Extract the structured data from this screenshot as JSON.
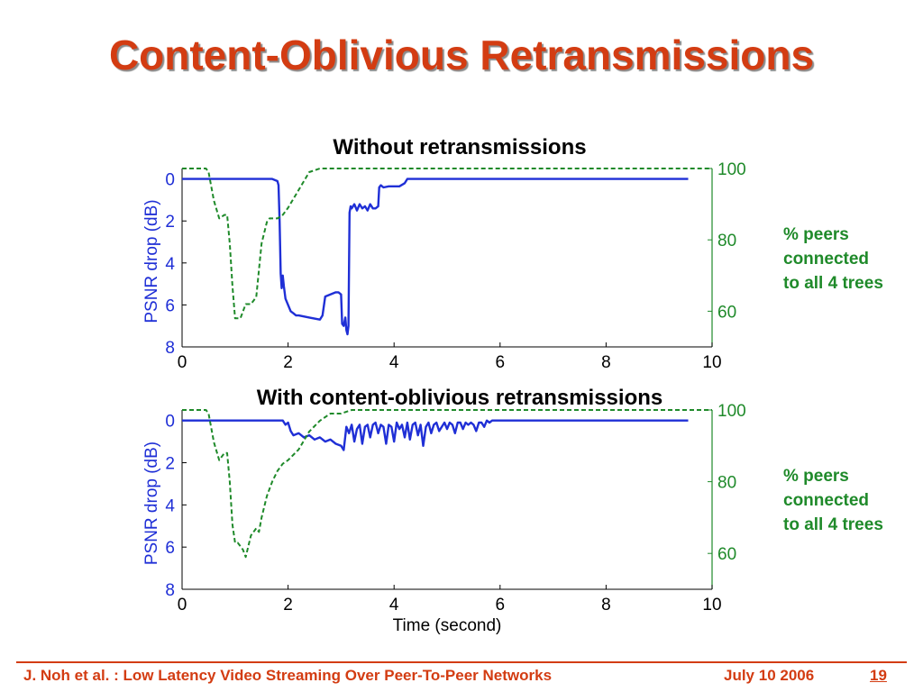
{
  "slide": {
    "title": "Content-Oblivious Retransmissions",
    "footer_left": "J. Noh et al. : Low Latency Video Streaming Over Peer-To-Peer Networks",
    "footer_date": "July 10 2006",
    "page_number": "19"
  },
  "colors": {
    "title": "#d33c12",
    "psnr": "#1f2fd6",
    "peers": "#1f8a2a",
    "footer": "#d33c12"
  },
  "chart_data": [
    {
      "type": "line",
      "title": "Without retransmissions",
      "xlabel": "",
      "ylabel": "PSNR drop (dB)",
      "y2label_lines": [
        "% peers",
        "connected",
        "to all 4 trees"
      ],
      "xlim": [
        0,
        10
      ],
      "ylim": [
        8,
        -0.5
      ],
      "y2lim": [
        50,
        100
      ],
      "xticks": [
        "0",
        "2",
        "4",
        "6",
        "8",
        "10"
      ],
      "yticks": [
        "0",
        "2",
        "4",
        "6",
        "8"
      ],
      "y2ticks": [
        "60",
        "80",
        "100"
      ],
      "series": [
        {
          "axis": "left",
          "color": "#1f2fd6",
          "style": "solid",
          "x": [
            0,
            1.7,
            1.8,
            1.82,
            1.84,
            1.86,
            1.88,
            1.9,
            1.92,
            1.95,
            2.0,
            2.05,
            2.1,
            2.15,
            2.2,
            2.4,
            2.6,
            2.65,
            2.7,
            2.8,
            2.9,
            2.95,
            3.0,
            3.02,
            3.05,
            3.08,
            3.1,
            3.12,
            3.14,
            3.16,
            3.18,
            3.2,
            3.25,
            3.3,
            3.35,
            3.4,
            3.45,
            3.5,
            3.55,
            3.6,
            3.65,
            3.7,
            3.72,
            3.75,
            3.8,
            3.9,
            4.1,
            4.2,
            4.25,
            4.3,
            5.0,
            6.0,
            7.0,
            8.0,
            9.0,
            9.55
          ],
          "y": [
            0,
            0,
            0.1,
            0.3,
            2.0,
            4.5,
            5.2,
            4.6,
            5.1,
            5.7,
            6.0,
            6.3,
            6.4,
            6.5,
            6.5,
            6.6,
            6.7,
            6.5,
            5.6,
            5.5,
            5.4,
            5.4,
            5.5,
            6.9,
            7.0,
            6.6,
            7.2,
            7.4,
            7.0,
            1.6,
            1.3,
            1.4,
            1.2,
            1.5,
            1.2,
            1.4,
            1.3,
            1.5,
            1.2,
            1.4,
            1.4,
            1.3,
            0.4,
            0.3,
            0.4,
            0.35,
            0.35,
            0.2,
            0.0,
            0.0,
            0.0,
            0.0,
            0.0,
            0.0,
            0.0,
            0.0
          ]
        },
        {
          "axis": "right",
          "color": "#1f8a2a",
          "style": "dashed",
          "x": [
            0,
            0.45,
            0.5,
            0.6,
            0.7,
            0.8,
            0.85,
            0.9,
            0.95,
            1.0,
            1.1,
            1.2,
            1.3,
            1.4,
            1.5,
            1.6,
            1.65,
            1.7,
            1.8,
            1.9,
            2.0,
            2.2,
            2.4,
            2.6,
            2.8,
            3.0,
            4.0,
            5.0,
            6.0,
            7.0,
            8.0,
            9.0,
            10.0
          ],
          "y": [
            100,
            100,
            99,
            91,
            86,
            87,
            87,
            79,
            67,
            58,
            58,
            62,
            62,
            64,
            79,
            85,
            86,
            86,
            86,
            87,
            89,
            94,
            99,
            100,
            100,
            100,
            100,
            100,
            100,
            100,
            100,
            100,
            100
          ]
        }
      ]
    },
    {
      "type": "line",
      "title": "With content-oblivious retransmissions",
      "xlabel": "Time (second)",
      "ylabel": "PSNR drop (dB)",
      "y2label_lines": [
        "% peers",
        "connected",
        "to all 4 trees"
      ],
      "xlim": [
        0,
        10
      ],
      "ylim": [
        8,
        -0.5
      ],
      "y2lim": [
        50,
        100
      ],
      "xticks": [
        "0",
        "2",
        "4",
        "6",
        "8",
        "10"
      ],
      "yticks": [
        "0",
        "2",
        "4",
        "6",
        "8"
      ],
      "y2ticks": [
        "60",
        "80",
        "100"
      ],
      "series": [
        {
          "axis": "left",
          "color": "#1f2fd6",
          "style": "solid",
          "x": [
            0,
            1.9,
            1.95,
            2.0,
            2.05,
            2.1,
            2.2,
            2.3,
            2.4,
            2.5,
            2.6,
            2.7,
            2.8,
            2.9,
            3.0,
            3.05,
            3.1,
            3.15,
            3.2,
            3.25,
            3.3,
            3.35,
            3.4,
            3.45,
            3.5,
            3.55,
            3.6,
            3.65,
            3.7,
            3.75,
            3.8,
            3.85,
            3.9,
            3.95,
            4.0,
            4.05,
            4.1,
            4.15,
            4.2,
            4.25,
            4.3,
            4.35,
            4.4,
            4.45,
            4.5,
            4.55,
            4.6,
            4.65,
            4.7,
            4.75,
            4.8,
            4.85,
            4.9,
            4.95,
            5.0,
            5.05,
            5.1,
            5.15,
            5.2,
            5.25,
            5.3,
            5.35,
            5.4,
            5.45,
            5.5,
            5.55,
            5.6,
            5.65,
            5.7,
            5.75,
            5.8,
            5.85,
            6.0,
            7.0,
            8.0,
            9.0,
            9.55
          ],
          "y": [
            0,
            0,
            0.2,
            0.1,
            0.5,
            0.7,
            0.6,
            0.8,
            0.7,
            0.9,
            0.8,
            1.0,
            0.9,
            1.1,
            1.2,
            1.4,
            0.3,
            0.6,
            0.2,
            1.0,
            0.4,
            0.2,
            1.1,
            0.3,
            0.2,
            0.8,
            0.2,
            0.1,
            0.6,
            0.2,
            0.3,
            1.1,
            0.2,
            0.3,
            1.0,
            0.1,
            0.4,
            0.2,
            0.8,
            0.1,
            0.9,
            0.2,
            0.1,
            0.7,
            0.2,
            1.2,
            0.3,
            0.1,
            0.6,
            0.2,
            0.1,
            0.5,
            0.3,
            0.1,
            0.4,
            0.1,
            0.2,
            0.6,
            0.1,
            0.1,
            0.4,
            0.1,
            0.2,
            0.1,
            0.2,
            0.5,
            0.1,
            0.1,
            0.3,
            0.0,
            0.1,
            0.0,
            0.0,
            0.0,
            0.0,
            0.0,
            0.0
          ]
        },
        {
          "axis": "right",
          "color": "#1f8a2a",
          "style": "dashed",
          "x": [
            0,
            0.45,
            0.5,
            0.6,
            0.7,
            0.75,
            0.8,
            0.85,
            0.9,
            0.95,
            1.0,
            1.05,
            1.1,
            1.15,
            1.2,
            1.25,
            1.3,
            1.4,
            1.45,
            1.5,
            1.6,
            1.7,
            1.8,
            1.9,
            2.0,
            2.2,
            2.4,
            2.6,
            2.8,
            3.0,
            3.2,
            3.4,
            4.0,
            5.0,
            6.0,
            7.0,
            8.0,
            9.0,
            10.0
          ],
          "y": [
            100,
            100,
            99,
            91,
            86,
            87,
            88,
            88,
            80,
            68,
            63,
            63,
            62,
            61,
            59,
            62,
            65,
            67,
            66,
            70,
            76,
            80,
            83,
            85,
            86,
            89,
            94,
            97,
            99,
            99,
            100,
            100,
            100,
            100,
            100,
            100,
            100,
            100,
            100
          ]
        }
      ]
    }
  ]
}
